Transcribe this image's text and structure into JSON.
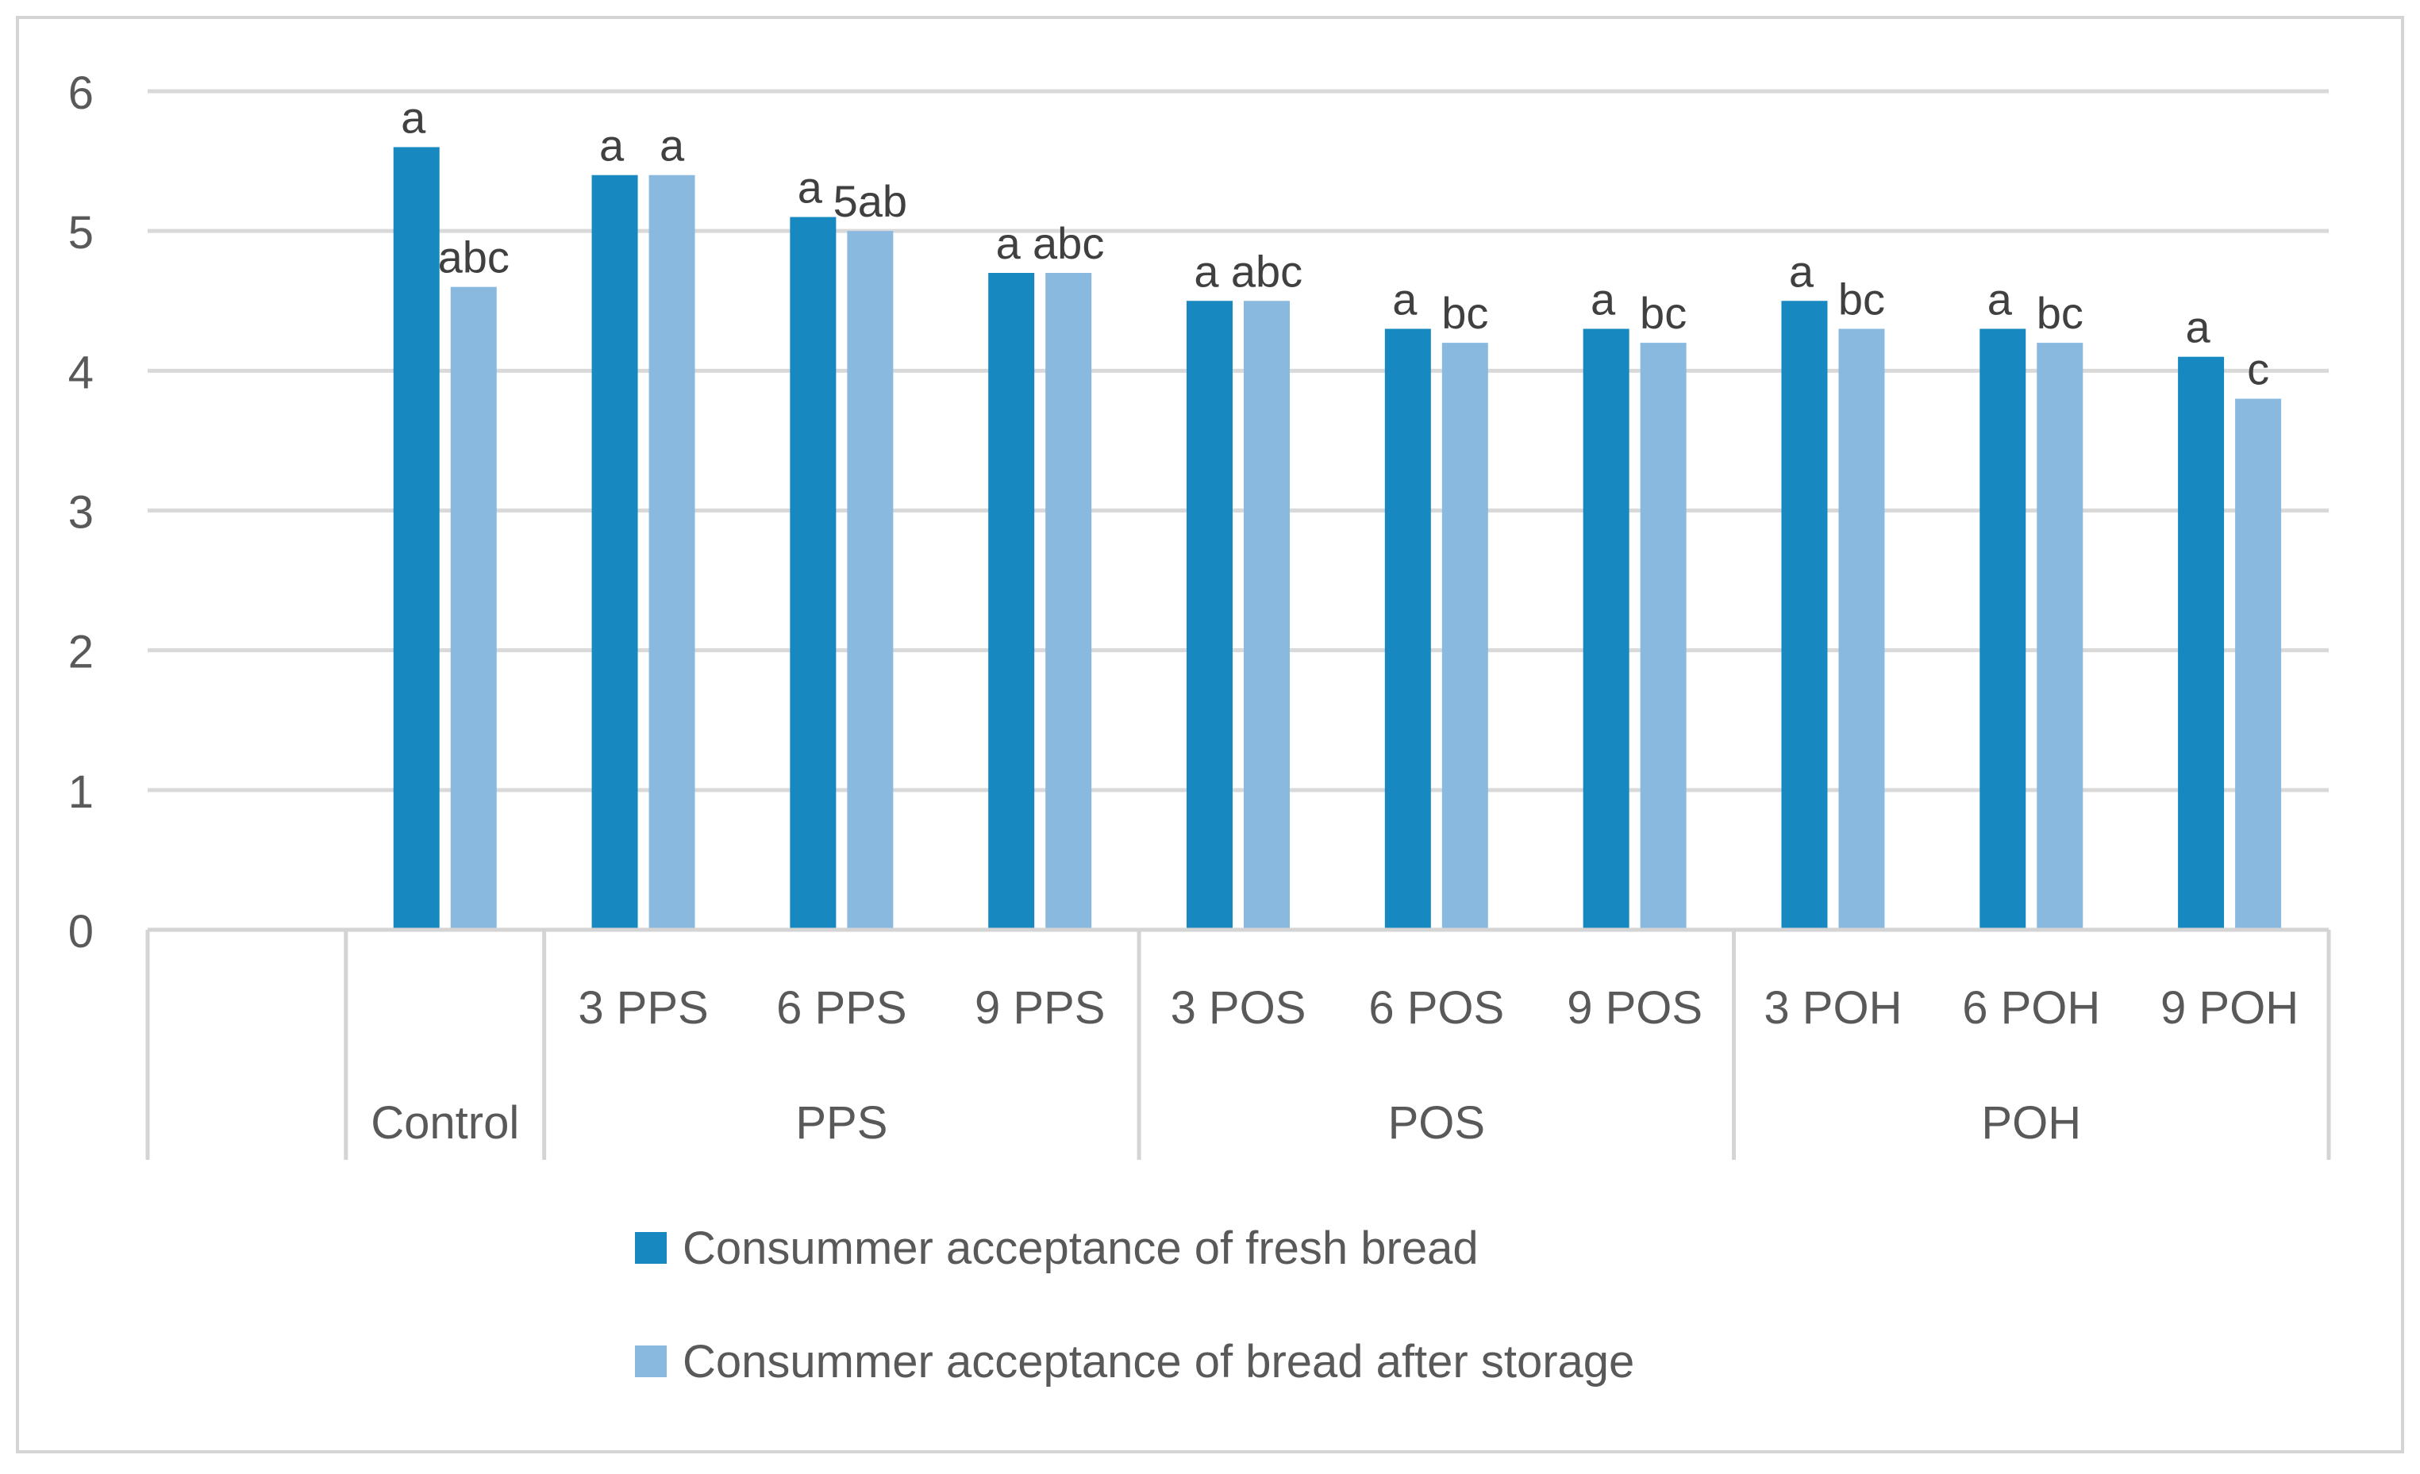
{
  "chart_data": {
    "type": "bar",
    "title": "",
    "xlabel": "",
    "ylabel": "",
    "ylim": [
      0,
      6
    ],
    "yticks": [
      "0",
      "1",
      "2",
      "3",
      "4",
      "5",
      "6"
    ],
    "grid": true,
    "categories": [
      "",
      "Control",
      "3 PPS",
      "6 PPS",
      "9 PPS",
      "3 POS",
      "6 POS",
      "9 POS",
      "3 POH",
      "6 POH",
      "9 POH"
    ],
    "groups": [
      {
        "label": "",
        "span": 1
      },
      {
        "label": "Control",
        "span": 1
      },
      {
        "label": "PPS",
        "span": 3
      },
      {
        "label": "POS",
        "span": 3
      },
      {
        "label": "POH",
        "span": 3
      }
    ],
    "series": [
      {
        "name": "Consummer acceptance of fresh bread",
        "color": "#1789c0",
        "values": [
          null,
          5.6,
          5.4,
          5.1,
          4.7,
          4.5,
          4.3,
          4.3,
          4.5,
          4.3,
          4.1
        ],
        "labels": [
          "",
          "a",
          "a",
          "a",
          "a",
          "a",
          "a",
          "a",
          "a",
          "a",
          "a"
        ]
      },
      {
        "name": "Consummer acceptance of bread after storage",
        "color": "#8ab9e0",
        "values": [
          null,
          4.6,
          5.4,
          5.0,
          4.7,
          4.5,
          4.2,
          4.2,
          4.3,
          4.2,
          3.8
        ],
        "labels": [
          "",
          "abc",
          "a",
          "5ab",
          "abc",
          "abc",
          "bc",
          "bc",
          "bc",
          "bc",
          "c"
        ]
      }
    ],
    "legend_position": "bottom"
  }
}
